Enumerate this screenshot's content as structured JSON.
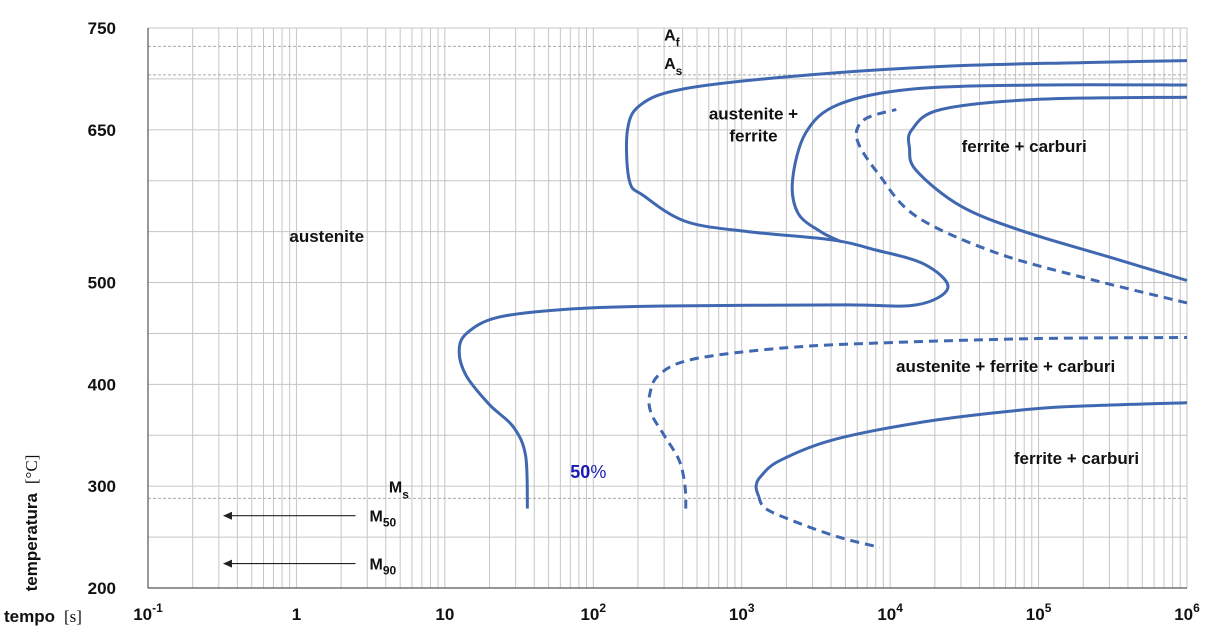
{
  "chart_data": {
    "type": "line",
    "title": "",
    "x_scale": "log10",
    "xlim": [
      0.1,
      1000000
    ],
    "ylim": [
      200,
      750
    ],
    "grid": true,
    "colors": {
      "curve": "#4068b0",
      "pct_label": "#1a1ab5",
      "text": "#111111",
      "grid": "#c6c6c6",
      "reference": "#aaaaaa"
    },
    "xlabel": {
      "name": "tempo",
      "unit": "[s]"
    },
    "ylabel": {
      "name": "temperatura",
      "unit": "[°C]"
    },
    "x_ticks": [
      {
        "base": "10",
        "exp": "-1",
        "x": 0.1
      },
      {
        "base": "1",
        "exp": "",
        "x": 1
      },
      {
        "base": "10",
        "exp": "",
        "x": 10
      },
      {
        "base": "10",
        "exp": "2",
        "x": 100
      },
      {
        "base": "10",
        "exp": "3",
        "x": 1000
      },
      {
        "base": "10",
        "exp": "4",
        "x": 10000
      },
      {
        "base": "10",
        "exp": "5",
        "x": 100000
      },
      {
        "base": "10",
        "exp": "6",
        "x": 1000000
      }
    ],
    "y_ticks": [
      "200",
      "300",
      "400",
      "500",
      "650",
      "750"
    ],
    "reference_lines": [
      {
        "base": "A",
        "sub": "f",
        "y": 732,
        "label_x": 300
      },
      {
        "base": "A",
        "sub": "s",
        "y": 704,
        "label_x": 300
      },
      {
        "base": "M",
        "sub": "s",
        "y": 288,
        "label_x": 4.2
      }
    ],
    "markers": [
      {
        "base": "M",
        "sub": "50",
        "y": 271,
        "x_start": 2.5,
        "x_end": 0.32
      },
      {
        "base": "M",
        "sub": "90",
        "y": 224,
        "x_start": 2.5,
        "x_end": 0.32
      }
    ],
    "series": [
      {
        "line": "solid",
        "points": [
          [
            36,
            278
          ],
          [
            35,
            330
          ],
          [
            29,
            358
          ],
          [
            20,
            380
          ],
          [
            14,
            408
          ],
          [
            12.5,
            432
          ],
          [
            14,
            450
          ],
          [
            23,
            466
          ],
          [
            70,
            474
          ],
          [
            300,
            477
          ],
          [
            5000,
            478
          ],
          [
            15000,
            478
          ],
          [
            24500,
            495
          ],
          [
            17000,
            518
          ],
          [
            8000,
            532
          ],
          [
            4000,
            542
          ],
          [
            1100,
            550
          ],
          [
            420,
            560
          ],
          [
            220,
            585
          ],
          [
            175,
            600
          ],
          [
            170,
            650
          ],
          [
            210,
            675
          ],
          [
            400,
            690
          ],
          [
            2000,
            702
          ],
          [
            20000,
            712
          ],
          [
            200000,
            716
          ],
          [
            1000000,
            718
          ]
        ]
      },
      {
        "line": "solid",
        "points": [
          [
            4700,
            540
          ],
          [
            3400,
            550
          ],
          [
            2400,
            568
          ],
          [
            2200,
            600
          ],
          [
            2700,
            647
          ],
          [
            4500,
            675
          ],
          [
            14000,
            690
          ],
          [
            100000,
            694
          ],
          [
            1000000,
            694
          ]
        ]
      },
      {
        "line": "solid",
        "points": [
          [
            1000000,
            502
          ],
          [
            300000,
            525
          ],
          [
            80000,
            550
          ],
          [
            30000,
            575
          ],
          [
            15000,
            610
          ],
          [
            13500,
            632
          ],
          [
            14000,
            650
          ],
          [
            22000,
            670
          ],
          [
            100000,
            680
          ],
          [
            1000000,
            682
          ]
        ]
      },
      {
        "line": "dashed",
        "points": [
          [
            1000000,
            480
          ],
          [
            200000,
            505
          ],
          [
            50000,
            530
          ],
          [
            15000,
            565
          ],
          [
            8500,
            605
          ],
          [
            6000,
            640
          ],
          [
            6700,
            660
          ],
          [
            11000,
            670
          ]
        ]
      },
      {
        "line": "dashed",
        "points": [
          [
            420,
            278
          ],
          [
            415,
            300
          ],
          [
            380,
            325
          ],
          [
            300,
            350
          ],
          [
            245,
            372
          ],
          [
            240,
            390
          ],
          [
            280,
            410
          ],
          [
            480,
            425
          ],
          [
            2000,
            436
          ],
          [
            10000,
            441
          ],
          [
            100000,
            445
          ],
          [
            1000000,
            446
          ]
        ]
      },
      {
        "line": "solid",
        "points": [
          [
            1300,
            290
          ],
          [
            1250,
            300
          ],
          [
            1350,
            310
          ],
          [
            1800,
            325
          ],
          [
            4000,
            345
          ],
          [
            15000,
            362
          ],
          [
            50000,
            372
          ],
          [
            150000,
            378
          ],
          [
            1000000,
            382
          ]
        ]
      },
      {
        "line": "dashed",
        "points": [
          [
            1300,
            290
          ],
          [
            1450,
            278
          ],
          [
            2300,
            265
          ],
          [
            4500,
            250
          ],
          [
            8500,
            240
          ]
        ]
      }
    ],
    "region_labels": [
      {
        "lines": [
          "austenite"
        ],
        "x": 1.6,
        "y": 540
      },
      {
        "lines": [
          "austenite +",
          "ferrite"
        ],
        "x": 1200,
        "y": 660
      },
      {
        "lines": [
          "ferrite + carburi"
        ],
        "x": 80000,
        "y": 628
      },
      {
        "lines": [
          "austenite + ferrite + carburi"
        ],
        "x": 60000,
        "y": 412
      },
      {
        "lines": [
          "ferrite + carburi"
        ],
        "x": 180000,
        "y": 322
      }
    ],
    "percent_label": {
      "value": "50",
      "unit": "%",
      "x": 70,
      "y": 308
    }
  }
}
